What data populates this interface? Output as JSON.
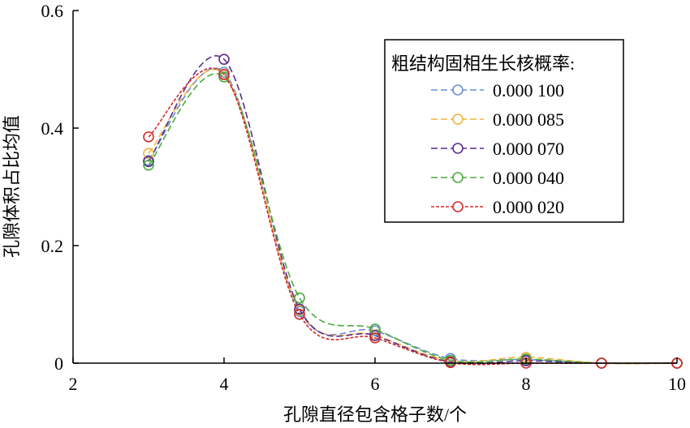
{
  "chart_data": {
    "type": "line",
    "xlabel": "孔隙直径包含格子数/个",
    "ylabel": "孔隙体积占比均值",
    "xlim": [
      2,
      10
    ],
    "ylim": [
      0,
      0.6
    ],
    "xticks": [
      2,
      4,
      6,
      8,
      10
    ],
    "yticks": [
      0,
      0.2,
      0.4,
      0.6
    ],
    "xtick_labels": [
      "2",
      "4",
      "6",
      "8",
      "10"
    ],
    "ytick_labels": [
      "0",
      "0.2",
      "0.4",
      "0.6"
    ],
    "grid": false,
    "legend": {
      "title": "粗结构固相生长核概率:",
      "placement": "top-right"
    },
    "series": [
      {
        "name": "0.000 100",
        "color": "#6a8fd0",
        "points": [
          [
            3,
            0.345
          ],
          [
            4,
            0.495
          ],
          [
            5,
            0.088
          ],
          [
            6,
            0.055
          ],
          [
            7,
            0.008
          ],
          [
            8,
            0.006
          ],
          [
            9,
            0.0
          ],
          [
            10,
            0.0
          ]
        ]
      },
      {
        "name": "0.000 085",
        "color": "#f0b43c",
        "points": [
          [
            3,
            0.357
          ],
          [
            4,
            0.492
          ],
          [
            5,
            0.09
          ],
          [
            6,
            0.048
          ],
          [
            7,
            0.004
          ],
          [
            8,
            0.01
          ],
          [
            9,
            0.0
          ],
          [
            10,
            0.0
          ]
        ]
      },
      {
        "name": "0.000 070",
        "color": "#5a2d8c",
        "points": [
          [
            3,
            0.343
          ],
          [
            4,
            0.517
          ],
          [
            5,
            0.092
          ],
          [
            6,
            0.047
          ],
          [
            7,
            0.002
          ],
          [
            8,
            0.004
          ],
          [
            9,
            0.0
          ],
          [
            10,
            0.0
          ]
        ]
      },
      {
        "name": "0.000 040",
        "color": "#4caa3c",
        "points": [
          [
            3,
            0.337
          ],
          [
            4,
            0.487
          ],
          [
            5,
            0.111
          ],
          [
            6,
            0.058
          ],
          [
            7,
            0.005
          ],
          [
            8,
            0.007
          ],
          [
            9,
            0.0
          ],
          [
            10,
            0.0
          ]
        ]
      },
      {
        "name": "0.000 020",
        "color": "#d42a2a",
        "points": [
          [
            3,
            0.385
          ],
          [
            4,
            0.491
          ],
          [
            5,
            0.083
          ],
          [
            6,
            0.043
          ],
          [
            7,
            0.001
          ],
          [
            8,
            0.0
          ],
          [
            9,
            0.0
          ],
          [
            10,
            0.0
          ]
        ]
      }
    ]
  }
}
